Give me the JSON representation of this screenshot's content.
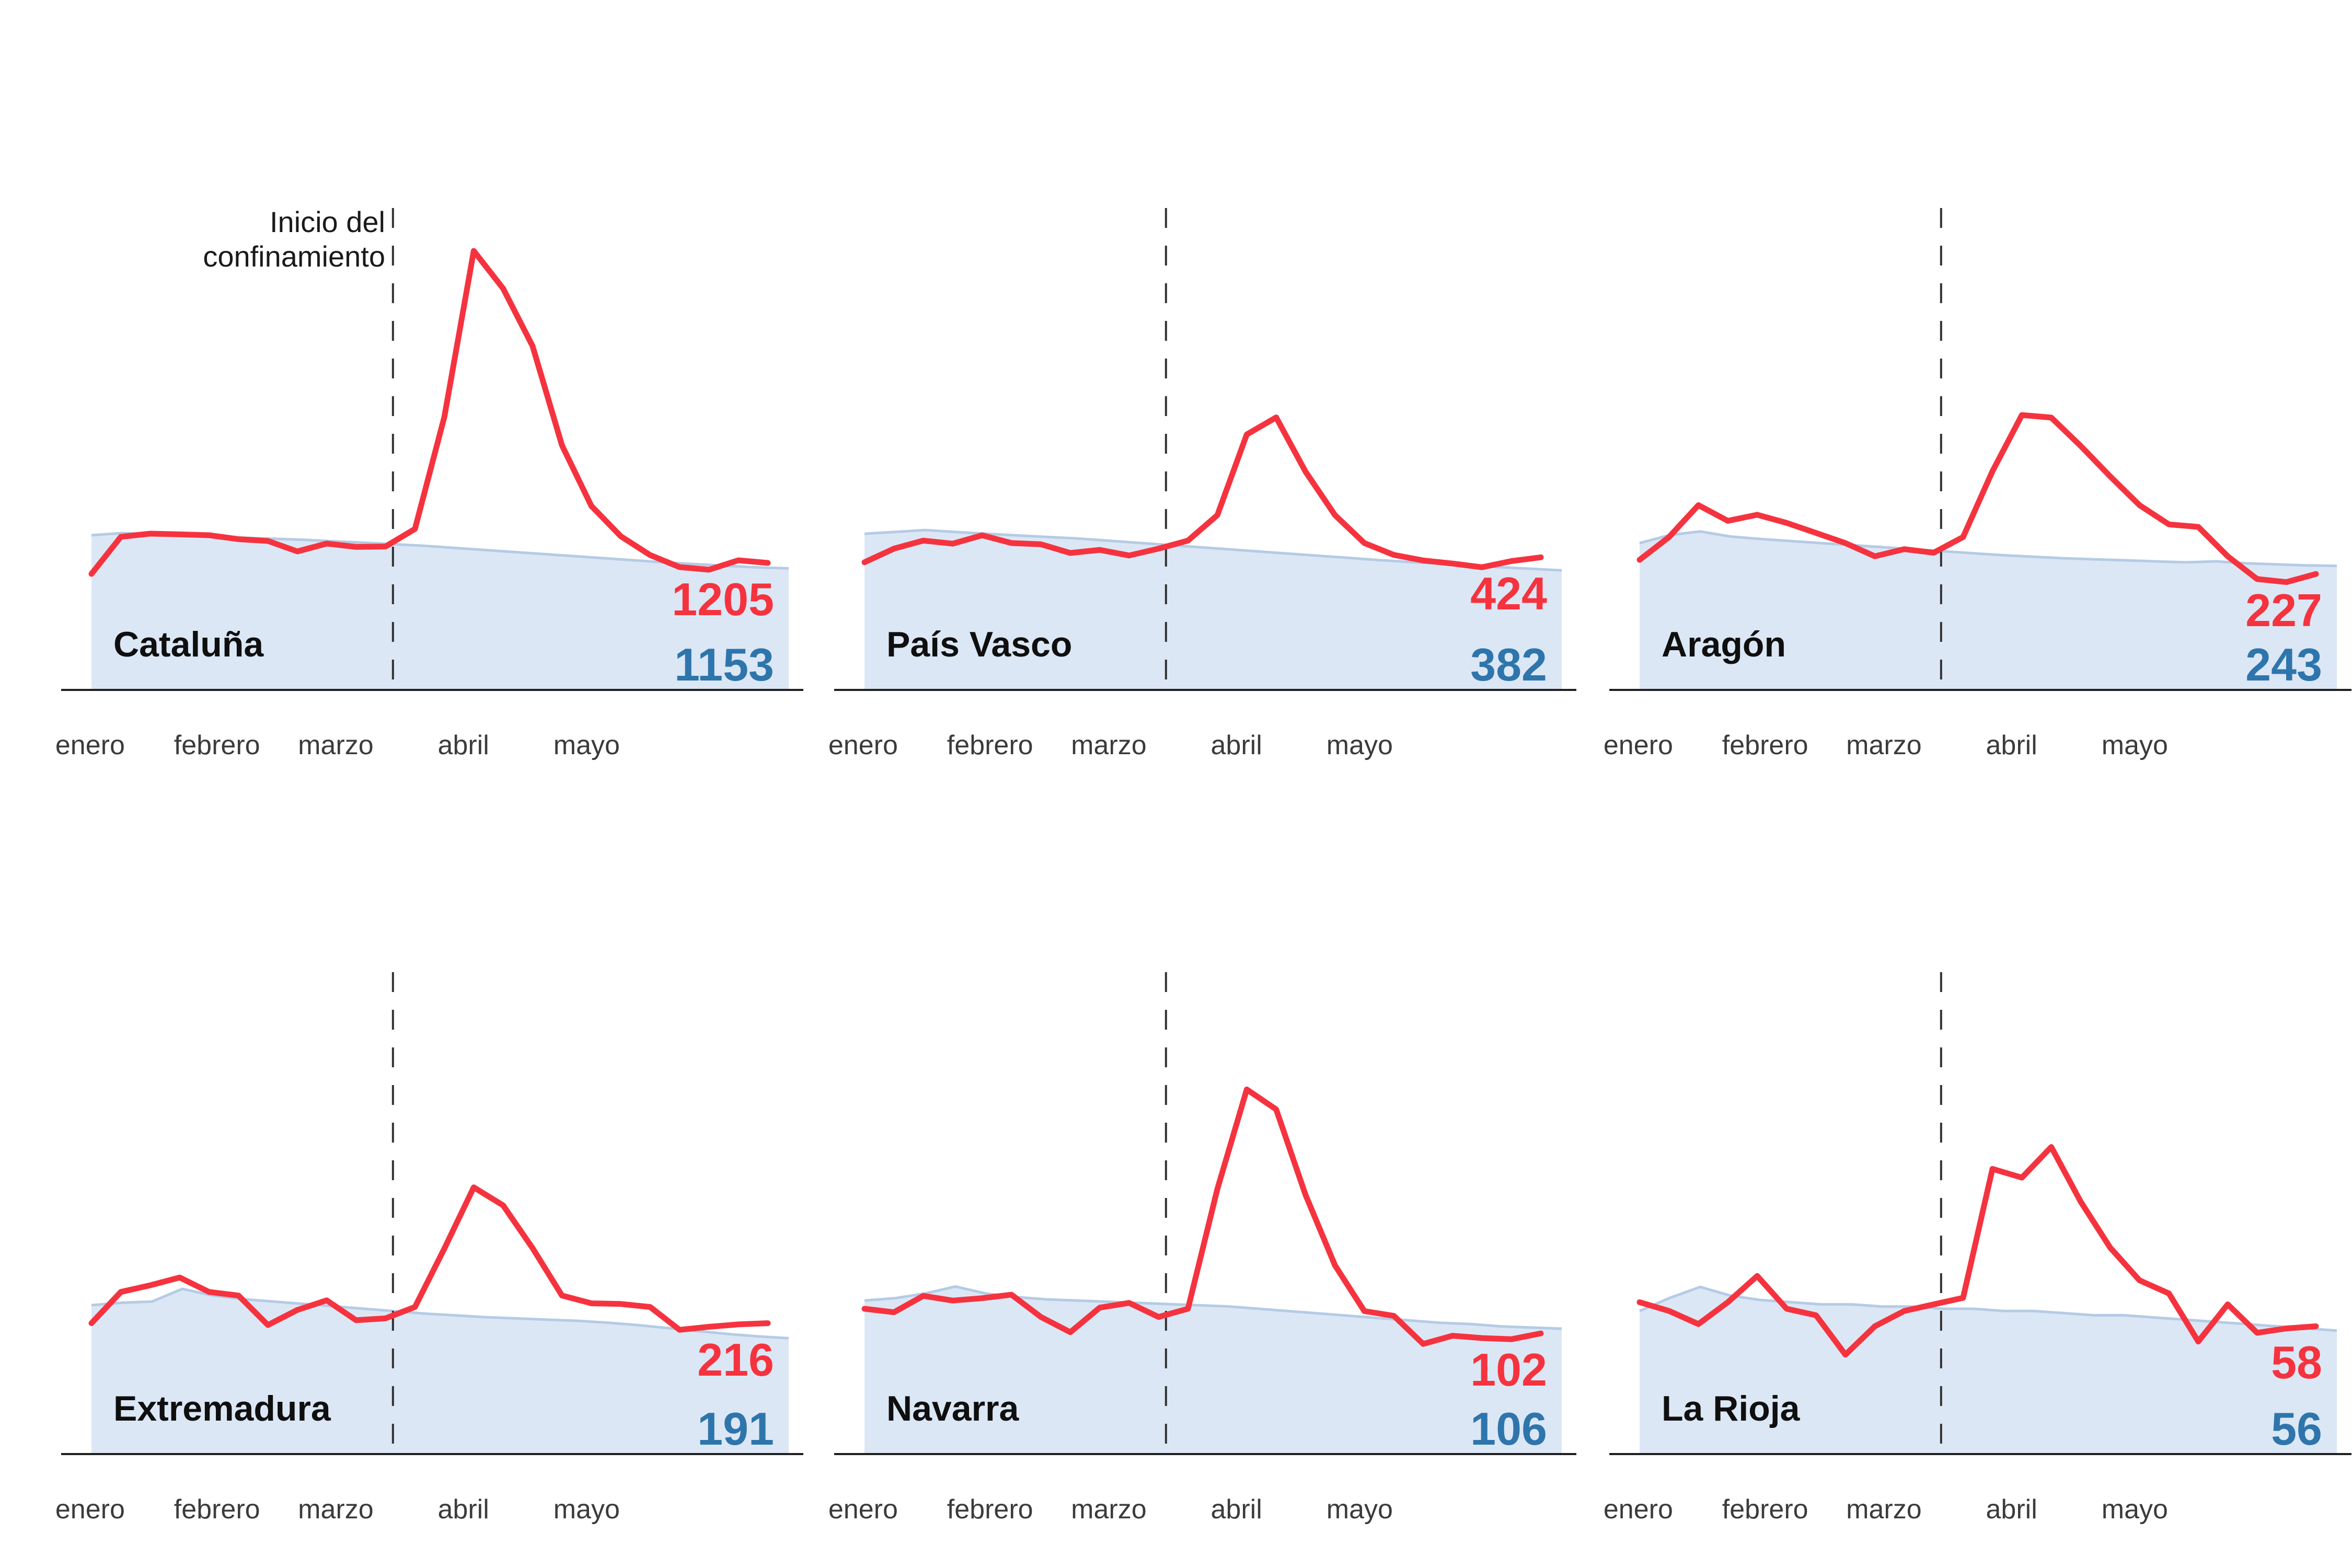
{
  "annotation": {
    "line1": "Inicio del",
    "line2": "confinamiento"
  },
  "months": [
    "enero",
    "febrero",
    "marzo",
    "abril",
    "mayo"
  ],
  "colors": {
    "red_line": "#f5333f",
    "blue_fill": "#dce7f5",
    "blue_edge": "#b5cbe5",
    "blue_text": "#2e75ac",
    "axis": "#1f1f1f",
    "dash": "#333333",
    "month_text": "#3b3b3b",
    "title_text": "#0f0f0f"
  },
  "chart_data": [
    {
      "type": "line",
      "region": "Cataluña",
      "x_categories": [
        "enero",
        "febrero",
        "marzo",
        "abril",
        "mayo"
      ],
      "lockdown_x_fraction": 0.4324,
      "ylim": [
        0,
        4600
      ],
      "red": {
        "id": "observed-deaths-line",
        "final_label": "1205",
        "values": [
          1100,
          1455,
          1485,
          1478,
          1470,
          1432,
          1415,
          1315,
          1390,
          1358,
          1362,
          1530,
          2600,
          4190,
          3830,
          3280,
          2330,
          1750,
          1460,
          1280,
          1165,
          1140,
          1230,
          1205
        ]
      },
      "blue": {
        "id": "expected-deaths-band",
        "final_label": "1153",
        "values": [
          1470,
          1490,
          1480,
          1468,
          1456,
          1446,
          1436,
          1426,
          1412,
          1398,
          1384,
          1368,
          1348,
          1328,
          1308,
          1288,
          1268,
          1248,
          1228,
          1208,
          1192,
          1176,
          1162,
          1153
        ]
      }
    },
    {
      "type": "line",
      "region": "País Vasco",
      "x_categories": [
        "enero",
        "febrero",
        "marzo",
        "abril",
        "mayo"
      ],
      "lockdown_x_fraction": 0.4324,
      "ylim": [
        0,
        1550
      ],
      "red": {
        "id": "observed-deaths-line",
        "final_label": "424",
        "values": [
          408,
          452,
          478,
          468,
          495,
          470,
          466,
          438,
          448,
          430,
          452,
          478,
          560,
          820,
          875,
          700,
          560,
          470,
          432,
          414,
          404,
          392,
          412,
          424
        ]
      },
      "blue": {
        "id": "expected-deaths-band",
        "final_label": "382",
        "values": [
          500,
          506,
          512,
          506,
          500,
          495,
          490,
          485,
          478,
          471,
          464,
          457,
          450,
          443,
          436,
          429,
          422,
          415,
          409,
          403,
          397,
          392,
          387,
          382
        ]
      }
    },
    {
      "type": "line",
      "region": "Aragón",
      "x_categories": [
        "enero",
        "febrero",
        "marzo",
        "abril",
        "mayo"
      ],
      "lockdown_x_fraction": 0.4324,
      "ylim": [
        0,
        950
      ],
      "red": {
        "id": "observed-deaths-line",
        "final_label": "227",
        "values": [
          255,
          300,
          363,
          332,
          344,
          328,
          308,
          288,
          262,
          276,
          269,
          300,
          430,
          541,
          536,
          480,
          420,
          363,
          325,
          320,
          262,
          217,
          211,
          227
        ]
      },
      "blue": {
        "id": "expected-deaths-band",
        "final_label": "243",
        "values": [
          288,
          304,
          311,
          301,
          296,
          292,
          288,
          284,
          280,
          276,
          272,
          268,
          264,
          261,
          258,
          256,
          254,
          252,
          250,
          252,
          248,
          246,
          244,
          243
        ]
      }
    },
    {
      "type": "line",
      "region": "Extremadura",
      "x_categories": [
        "enero",
        "febrero",
        "marzo",
        "abril",
        "mayo"
      ],
      "lockdown_x_fraction": 0.4324,
      "ylim": [
        0,
        800
      ],
      "red": {
        "id": "observed-deaths-line",
        "final_label": "216",
        "values": [
          216,
          268,
          279,
          292,
          268,
          262,
          213,
          238,
          254,
          221,
          224,
          243,
          340,
          442,
          412,
          341,
          262,
          249,
          248,
          243,
          205,
          210,
          214,
          216
        ]
      },
      "blue": {
        "id": "expected-deaths-band",
        "final_label": "191",
        "values": [
          246,
          250,
          252,
          273,
          262,
          256,
          252,
          248,
          244,
          240,
          236,
          232,
          229,
          226,
          224,
          222,
          220,
          217,
          213,
          208,
          203,
          198,
          194,
          191
        ]
      }
    },
    {
      "type": "line",
      "region": "Navarra",
      "x_categories": [
        "enero",
        "febrero",
        "marzo",
        "abril",
        "mayo"
      ],
      "lockdown_x_fraction": 0.4324,
      "ylim": [
        0,
        410
      ],
      "red": {
        "id": "observed-deaths-line",
        "final_label": "102",
        "values": [
          123,
          120,
          134,
          130,
          132,
          135,
          116,
          103,
          124,
          128,
          116,
          123,
          225,
          310,
          293,
          220,
          160,
          121,
          117,
          93,
          100,
          98,
          97,
          102
        ]
      },
      "blue": {
        "id": "expected-deaths-band",
        "final_label": "106",
        "values": [
          130,
          132,
          136,
          142,
          136,
          133,
          131,
          130,
          129,
          128,
          127,
          126,
          125,
          123,
          121,
          119,
          117,
          115,
          113,
          111,
          110,
          108,
          107,
          106
        ]
      }
    },
    {
      "type": "line",
      "region": "La Rioja",
      "x_categories": [
        "enero",
        "febrero",
        "marzo",
        "abril",
        "mayo"
      ],
      "lockdown_x_fraction": 0.4324,
      "ylim": [
        0,
        220
      ],
      "red": {
        "id": "observed-deaths-line",
        "final_label": "58",
        "values": [
          69,
          65,
          59,
          69,
          81,
          66,
          63,
          45,
          58,
          65,
          68,
          71,
          130,
          126,
          140,
          115,
          94,
          79,
          73,
          51,
          68,
          55,
          57,
          58
        ]
      },
      "blue": {
        "id": "expected-deaths-band",
        "final_label": "56",
        "values": [
          65,
          71,
          76,
          72,
          70,
          69,
          68,
          68,
          67,
          67,
          66,
          66,
          65,
          65,
          64,
          63,
          63,
          62,
          61,
          60,
          59,
          58,
          57,
          56
        ]
      }
    }
  ]
}
